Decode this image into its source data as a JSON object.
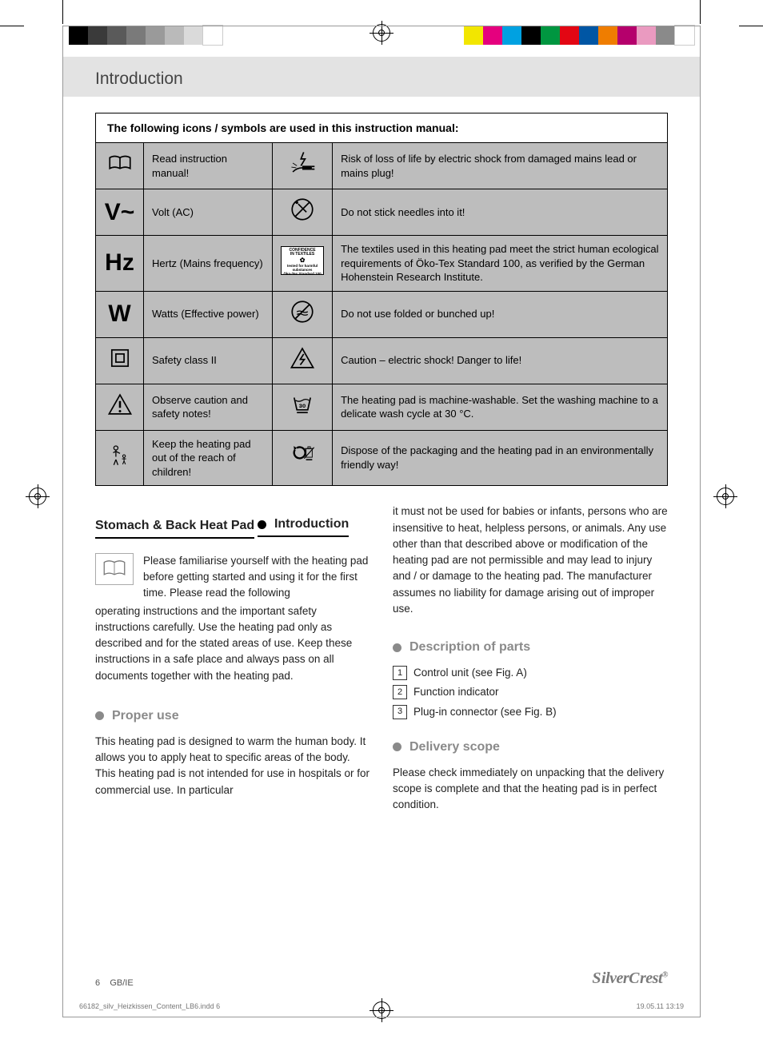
{
  "page_header": "Introduction",
  "table_header": "The following icons / symbols are used in this instruction manual:",
  "symbols": [
    {
      "icon_a": "book",
      "desc_a": "Read instruction manual!",
      "icon_b": "shock-plug",
      "desc_b": "Risk of loss of life by electric shock from damaged mains lead or mains plug!"
    },
    {
      "icon_a": "V~",
      "desc_a": "Volt (AC)",
      "icon_b": "no-needles",
      "desc_b": "Do not stick needles into it!"
    },
    {
      "icon_a": "Hz",
      "desc_a": "Hertz (Mains frequency)",
      "icon_b": "oeko-tex",
      "desc_b": "The textiles used in this heating pad meet the strict human ecological requirements of Öko-Tex Standard 100, as verified by the German Hohenstein Research Institute."
    },
    {
      "icon_a": "W",
      "desc_a": "Watts (Effective power)",
      "icon_b": "no-fold",
      "desc_b": "Do not use folded or bunched up!"
    },
    {
      "icon_a": "class2",
      "desc_a": "Safety class II",
      "icon_b": "shock-tri",
      "desc_b": "Caution – electric shock!\nDanger to life!"
    },
    {
      "icon_a": "warn-tri",
      "desc_a": "Observe caution and safety notes!",
      "icon_b": "wash30",
      "desc_b": "The heating pad is machine-washable. Set the washing machine to a delicate wash cycle at 30 °C."
    },
    {
      "icon_a": "child",
      "desc_a": "Keep the heating pad out of the reach of children!",
      "icon_b": "recycle",
      "desc_b": "Dispose of the packaging and the heating pad in an environmentally friendly way!"
    }
  ],
  "product_title": "Stomach & Back Heat Pad",
  "sections": {
    "introduction": {
      "title": "Introduction",
      "text_lead": "Please familiarise yourself with the heating pad before getting started and using it for the first time. Please read the following",
      "text_rest": "operating instructions and the important safety instructions carefully. Use the heating pad only as described and for the stated areas of use. Keep these instructions in a safe place and always pass on all documents together with the heating pad."
    },
    "proper_use": {
      "title": "Proper use",
      "text": "This heating pad is designed to warm the human body. It allows you to apply heat to specific areas of the body. This heating pad is not intended for use in hospitals or for commercial use. In particular"
    },
    "right_continuation": "it must not be used for babies or infants, persons who are insensitive to heat, helpless persons, or animals. Any use other than that described above or modification of the heating pad are not permissible and may lead to injury and / or damage to the heating pad. The manufacturer assumes no liability for damage arising out of improper use.",
    "description_of_parts": {
      "title": "Description of parts",
      "items": [
        "Control unit (see Fig. A)",
        "Function indicator",
        "Plug-in connector (see Fig. B)"
      ]
    },
    "delivery_scope": {
      "title": "Delivery scope",
      "text": "Please check immediately on unpacking that the delivery scope is complete and that the heating pad is in perfect condition."
    }
  },
  "footer": {
    "page_num": "6",
    "locale": "GB/IE",
    "brand": "SilverCrest",
    "file_line": "66182_silv_Heizkissen_Content_LB6.indd   6",
    "timestamp": "19.05.11   13:19"
  },
  "print_marks": {
    "gray_swatches": [
      "#000000",
      "#3a3a3a",
      "#5a5a5a",
      "#7a7a7a",
      "#9a9a9a",
      "#bababa",
      "#dadada",
      "#ffffff"
    ],
    "color_swatches": [
      "#f2e600",
      "#e5007e",
      "#00a1e1",
      "#000000",
      "#009640",
      "#e30613",
      "#0056a4",
      "#ef7d00",
      "#b5006c",
      "#ea9ac0",
      "#8a8a8a",
      "#ffffff"
    ]
  }
}
